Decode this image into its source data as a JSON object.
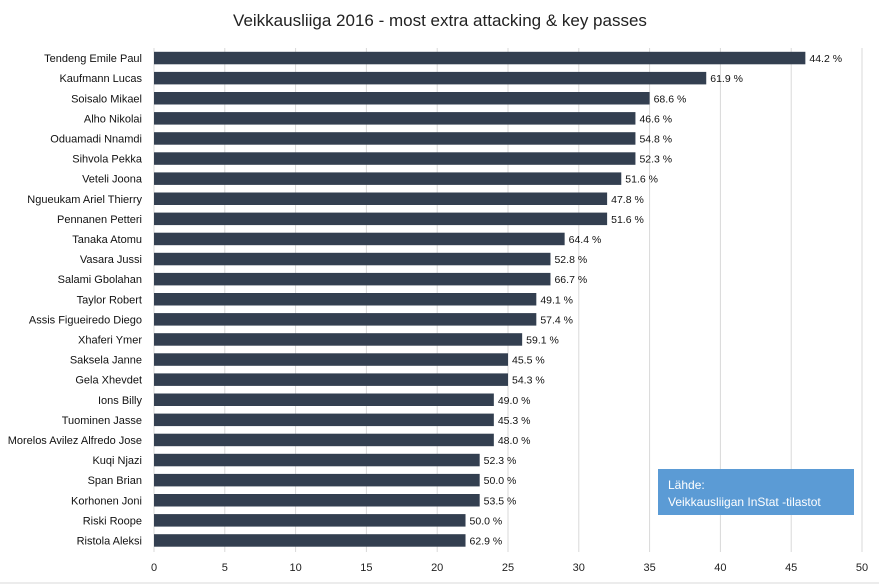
{
  "chart_data": {
    "type": "bar",
    "orientation": "horizontal",
    "title": "Veikkausliiga 2016 - most extra attacking & key passes",
    "xlabel": "",
    "ylabel": "",
    "xlim": [
      0,
      50
    ],
    "x_ticks": [
      "0",
      "5",
      "10",
      "15",
      "20",
      "25",
      "30",
      "35",
      "40",
      "45",
      "50"
    ],
    "grid": "vertical",
    "bar_color": "#333f50",
    "categories": [
      "Tendeng Emile Paul",
      "Kaufmann Lucas",
      "Soisalo Mikael",
      "Alho Nikolai",
      "Oduamadi Nnamdi",
      "Sihvola Pekka",
      "Veteli Joona",
      "Ngueukam Ariel Thierry",
      "Pennanen Petteri",
      "Tanaka Atomu",
      "Vasara Jussi",
      "Salami Gbolahan",
      "Taylor Robert",
      "Assis Figueiredo Diego",
      "Xhaferi Ymer",
      "Saksela Janne",
      "Gela Xhevdet",
      "Ions Billy",
      "Tuominen Jasse",
      "Morelos Avilez Alfredo Jose",
      "Kuqi Njazi",
      "Span Brian",
      "Korhonen Joni",
      "Riski Roope",
      "Ristola Aleksi"
    ],
    "values": [
      46,
      39,
      35,
      34,
      34,
      34,
      33,
      32,
      32,
      29,
      28,
      28,
      27,
      27,
      26,
      25,
      25,
      24,
      24,
      24,
      23,
      23,
      23,
      22,
      22
    ],
    "data_labels": [
      "44.2 %",
      "61.9 %",
      "68.6 %",
      "46.6 %",
      "54.8 %",
      "52.3 %",
      "51.6 %",
      "47.8 %",
      "51.6 %",
      "64.4 %",
      "52.8 %",
      "66.7 %",
      "49.1 %",
      "57.4 %",
      "59.1 %",
      "45.5 %",
      "54.3 %",
      "49.0 %",
      "45.3 %",
      "48.0 %",
      "52.3 %",
      "50.0 %",
      "53.5 %",
      "50.0 %",
      "62.9 %"
    ]
  },
  "source_box": {
    "line1": "Lähde:",
    "line2": "Veikkausliigan InStat -tilastot",
    "color": "#5b9bd5"
  }
}
